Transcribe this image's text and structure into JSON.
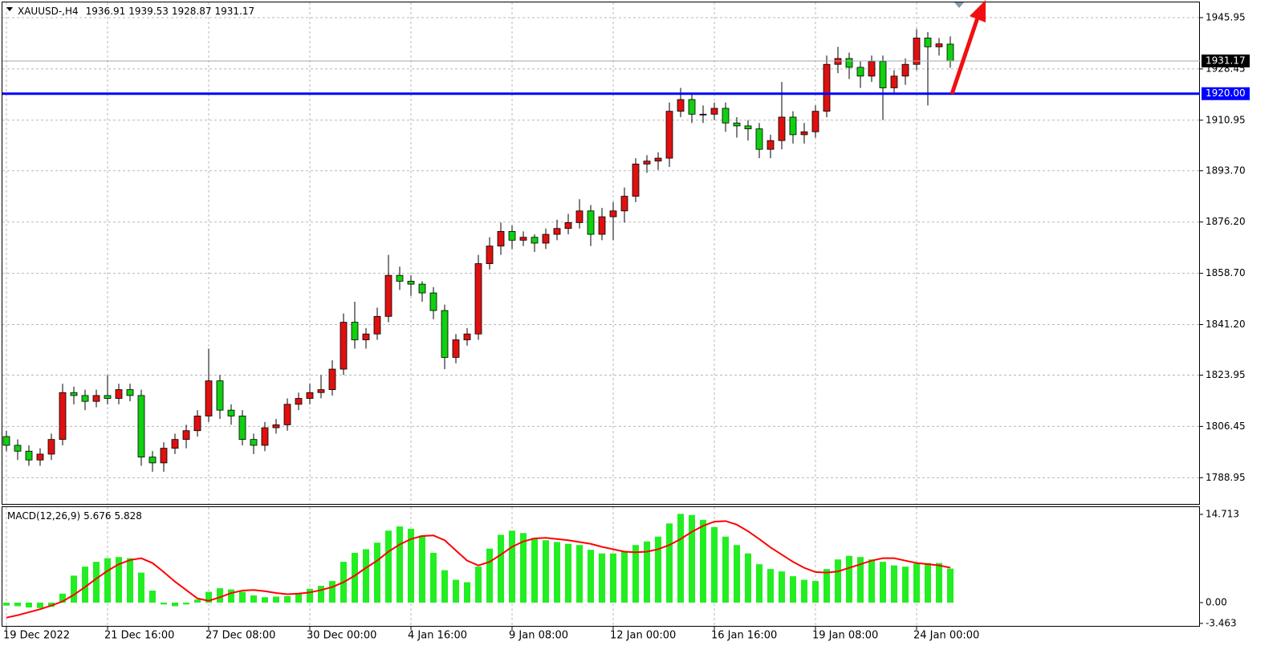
{
  "chart_data": [
    {
      "type": "candlestick",
      "title": "XAUUSD-,H4",
      "categories": [
        "19 Dec 2022",
        null,
        null,
        null,
        null,
        null,
        null,
        null,
        null,
        "21 Dec 16:00",
        null,
        null,
        null,
        null,
        null,
        null,
        null,
        null,
        "27 Dec 08:00",
        null,
        null,
        null,
        null,
        null,
        null,
        null,
        null,
        "30 Dec 00:00",
        null,
        null,
        null,
        null,
        null,
        null,
        null,
        null,
        "4 Jan 16:00",
        null,
        null,
        null,
        null,
        null,
        null,
        null,
        null,
        "9 Jan 08:00",
        null,
        null,
        null,
        null,
        null,
        null,
        null,
        null,
        "12 Jan 00:00",
        null,
        null,
        null,
        null,
        null,
        null,
        null,
        null,
        "16 Jan 16:00",
        null,
        null,
        null,
        null,
        null,
        null,
        null,
        null,
        "19 Jan 08:00",
        null,
        null,
        null,
        null,
        null,
        null,
        null,
        null,
        "24 Jan 00:00",
        null,
        null,
        null
      ],
      "open": [
        1803,
        1800,
        1798,
        1795,
        1797,
        1802,
        1818,
        1817,
        1815,
        1817,
        1816,
        1819,
        1817,
        1796,
        1794,
        1799,
        1802,
        1805,
        1810,
        1822,
        1812,
        1810,
        1802,
        1800,
        1806,
        1807,
        1814,
        1816,
        1818,
        1819,
        1826,
        1842,
        1836,
        1838,
        1844,
        1858,
        1856,
        1855,
        1852,
        1846,
        1830,
        1836,
        1838,
        1862,
        1868,
        1873,
        1870,
        1871,
        1869,
        1872,
        1874,
        1876,
        1880,
        1872,
        1878,
        1880,
        1885,
        1896,
        1897,
        1898,
        1914,
        1918,
        1913,
        1913,
        1915,
        1910,
        1909,
        1908,
        1901,
        1904,
        1912,
        1906,
        1907,
        1914,
        1930,
        1932,
        1929,
        1926,
        1931,
        1922,
        1926,
        1930,
        1939,
        1936,
        1936.91
      ],
      "high": [
        1805,
        1802,
        1800,
        1799,
        1804,
        1821,
        1820,
        1819,
        1819,
        1824,
        1821,
        1821,
        1819,
        1798,
        1801,
        1804,
        1807,
        1812,
        1833,
        1824,
        1814,
        1812,
        1804,
        1808,
        1809,
        1816,
        1818,
        1821,
        1824,
        1829,
        1845,
        1849,
        1840,
        1847,
        1865,
        1861,
        1858,
        1856,
        1854,
        1848,
        1838,
        1840,
        1865,
        1871,
        1876,
        1875,
        1873,
        1872,
        1874,
        1877,
        1879,
        1884,
        1882,
        1881,
        1883,
        1888,
        1898,
        1899,
        1900,
        1917,
        1922,
        1920,
        1916,
        1917,
        1917,
        1912,
        1911,
        1910,
        1906,
        1924,
        1914,
        1910,
        1916,
        1933,
        1936,
        1934,
        1931,
        1933,
        1933,
        1928,
        1932,
        1942,
        1941,
        1939,
        1939.53
      ],
      "low": [
        1798,
        1795,
        1793,
        1793,
        1795,
        1800,
        1814,
        1812,
        1813,
        1814,
        1814,
        1815,
        1793,
        1791,
        1791,
        1797,
        1799,
        1803,
        1808,
        1809,
        1807,
        1800,
        1797,
        1798,
        1804,
        1805,
        1812,
        1814,
        1816,
        1817,
        1824,
        1833,
        1833,
        1836,
        1842,
        1853,
        1851,
        1849,
        1843,
        1826,
        1828,
        1834,
        1836,
        1860,
        1865,
        1867,
        1868,
        1866,
        1867,
        1870,
        1872,
        1874,
        1868,
        1870,
        1870,
        1876,
        1883,
        1893,
        1894,
        1895,
        1912,
        1910,
        1910,
        1911,
        1907,
        1905,
        1904,
        1898,
        1898,
        1901,
        1903,
        1903,
        1905,
        1912,
        1927,
        1925,
        1922,
        1924,
        1911,
        1920,
        1923,
        1928,
        1916,
        1933,
        1928.87
      ],
      "close": [
        1800,
        1798,
        1795,
        1797,
        1802,
        1818,
        1817,
        1815,
        1817,
        1816,
        1819,
        1817,
        1796,
        1794,
        1799,
        1802,
        1805,
        1810,
        1822,
        1812,
        1810,
        1802,
        1800,
        1806,
        1807,
        1814,
        1816,
        1818,
        1819,
        1826,
        1842,
        1836,
        1838,
        1844,
        1858,
        1856,
        1855,
        1852,
        1846,
        1830,
        1836,
        1838,
        1862,
        1868,
        1873,
        1870,
        1871,
        1869,
        1872,
        1874,
        1876,
        1880,
        1872,
        1878,
        1880,
        1885,
        1896,
        1897,
        1898,
        1914,
        1918,
        1913,
        1913,
        1915,
        1910,
        1909,
        1908,
        1901,
        1904,
        1912,
        1906,
        1907,
        1914,
        1930,
        1932,
        1929,
        1926,
        1931,
        1922,
        1926,
        1930,
        1939,
        1936,
        1937,
        1931.17
      ],
      "up_color": "#e01010",
      "down_color": "#10d010",
      "ylim": [
        1780.0,
        1950.6
      ],
      "yticks": [
        1945.95,
        1928.45,
        1910.95,
        {
          "value": 1893.7,
          "label": "1893.70"
        },
        {
          "value": 1876.2,
          "label": "1876.20"
        },
        {
          "value": 1858.7,
          "label": "1858.70"
        },
        {
          "value": 1841.2,
          "label": "1841.20"
        },
        1823.95,
        1806.45,
        1788.95
      ],
      "hlines": [
        {
          "value": 1920,
          "label": "1920.00",
          "color": "#0000ff"
        }
      ],
      "grid": true
    },
    {
      "type": "macd",
      "title": "MACD(12,26,9)",
      "series": [
        {
          "name": "MACD",
          "color": "#22ee22",
          "values": [
            -0.5,
            -0.6,
            -0.8,
            -0.9,
            -0.7,
            1.5,
            4.5,
            6,
            6.8,
            7.4,
            7.6,
            7.4,
            5,
            2,
            -0.3,
            -0.6,
            -0.3,
            0.5,
            1.8,
            2.4,
            2.2,
            1.8,
            1.2,
            0.9,
            1,
            1.1,
            1.6,
            2.3,
            2.8,
            3.6,
            6.8,
            8.3,
            8.9,
            10,
            12,
            12.7,
            12.3,
            11.2,
            8.3,
            5.4,
            3.8,
            3.4,
            6,
            9,
            11.3,
            12,
            11.6,
            10.8,
            10.4,
            10.1,
            9.8,
            9.6,
            8.8,
            8.2,
            8.2,
            8.6,
            9.6,
            10.2,
            11,
            13.2,
            14.8,
            14.6,
            13.8,
            12.6,
            11,
            9.6,
            8.2,
            6.4,
            5.6,
            5.2,
            4.4,
            3.8,
            3.6,
            5.6,
            7.2,
            7.8,
            7.6,
            7.2,
            6.8,
            6.2,
            6,
            6.5,
            6.6,
            6.6,
            5.676
          ]
        },
        {
          "name": "Signal",
          "color": "#ff0000",
          "values": [
            -2.5,
            -2.1,
            -1.6,
            -1.1,
            -0.5,
            0.2,
            1.3,
            2.6,
            4,
            5.3,
            6.4,
            7.1,
            7.4,
            6.6,
            5.1,
            3.5,
            2.1,
            0.7,
            0.3,
            0.9,
            1.6,
            2,
            2.1,
            1.9,
            1.6,
            1.4,
            1.5,
            1.7,
            2.1,
            2.6,
            3.4,
            4.5,
            5.8,
            7,
            8.5,
            9.7,
            10.6,
            11.1,
            11.2,
            10.4,
            8.7,
            7,
            6.2,
            6.8,
            8,
            9.3,
            10.2,
            10.7,
            10.8,
            10.6,
            10.4,
            10.1,
            9.8,
            9.3,
            8.9,
            8.5,
            8.4,
            8.5,
            8.9,
            9.6,
            10.6,
            11.8,
            12.8,
            13.5,
            13.6,
            13,
            11.9,
            10.6,
            9.2,
            8,
            6.8,
            5.8,
            5.1,
            5,
            5.2,
            5.8,
            6.4,
            7,
            7.4,
            7.4,
            7,
            6.6,
            6.4,
            6.2,
            5.828
          ]
        }
      ],
      "ylim": [
        -3.88,
        15.92
      ],
      "yticks": [
        14.713,
        {
          "value": 0,
          "label": "0.00"
        },
        -3.463
      ]
    }
  ]
}
